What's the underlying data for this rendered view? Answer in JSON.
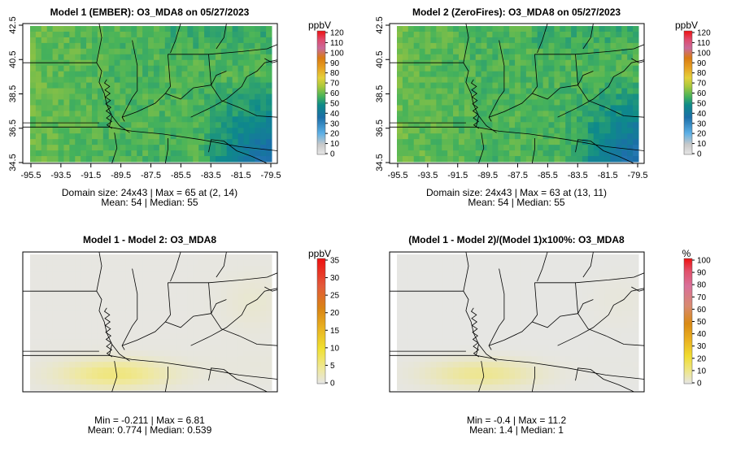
{
  "chart_data": [
    {
      "type": "heatmap",
      "title": "Model 1 (EMBER): O3_MDA8 on 05/27/2023",
      "x_ticks": [
        "-95.5",
        "-93.5",
        "-91.5",
        "-89.5",
        "-87.5",
        "-85.5",
        "-83.5",
        "-81.5",
        "-79.5"
      ],
      "y_ticks": [
        "34.5",
        "36.5",
        "38.5",
        "40.5",
        "42.5"
      ],
      "grid": {
        "cols": 24,
        "rows": 43
      },
      "stats_line1": "Domain size: 24x43 | Max = 65 at (2, 14)",
      "stats_line2": "Mean: 54 |  Median: 55",
      "colorbar": {
        "unit": "ppbV",
        "labels": [
          "120",
          "110",
          "100",
          "90",
          "80",
          "70",
          "60",
          "50",
          "40",
          "30",
          "20",
          "10",
          "0"
        ],
        "range": [
          0,
          120
        ]
      },
      "field": {
        "mean": 54,
        "max": 65
      }
    },
    {
      "type": "heatmap",
      "title": "Model 2 (ZeroFires): O3_MDA8 on 05/27/2023",
      "x_ticks": [
        "-95.5",
        "-93.5",
        "-91.5",
        "-89.5",
        "-87.5",
        "-85.5",
        "-83.5",
        "-81.5",
        "-79.5"
      ],
      "y_ticks": [
        "34.5",
        "36.5",
        "38.5",
        "40.5",
        "42.5"
      ],
      "grid": {
        "cols": 24,
        "rows": 43
      },
      "stats_line1": "Domain size: 24x43 | Max = 63 at (13, 11)",
      "stats_line2": "Mean: 54 |  Median: 55",
      "colorbar": {
        "unit": "ppbV",
        "labels": [
          "120",
          "110",
          "100",
          "90",
          "80",
          "70",
          "60",
          "50",
          "40",
          "30",
          "20",
          "10",
          "0"
        ],
        "range": [
          0,
          120
        ]
      },
      "field": {
        "mean": 54,
        "max": 63
      }
    },
    {
      "type": "heatmap",
      "title": "Model 1 - Model 2: O3_MDA8",
      "stats_line1": "Min = -0.211 | Max = 6.81",
      "stats_line2": "Mean: 0.774 |  Median: 0.539",
      "colorbar": {
        "unit": "ppbV",
        "labels": [
          "35",
          "30",
          "25",
          "20",
          "15",
          "10",
          "5",
          "0"
        ],
        "range": [
          0,
          35
        ]
      },
      "field": {
        "min": -0.211,
        "max": 6.81
      }
    },
    {
      "type": "heatmap",
      "title": "(Model 1 - Model 2)/(Model 1)x100%: O3_MDA8",
      "stats_line1": "Min = -0.4 | Max = 11.2",
      "stats_line2": "Mean: 1.4 |  Median: 1",
      "colorbar": {
        "unit": "%",
        "labels": [
          "100",
          "90",
          "80",
          "70",
          "60",
          "50",
          "40",
          "30",
          "20",
          "10",
          "0"
        ],
        "range": [
          0,
          100
        ]
      },
      "field": {
        "min": -0.4,
        "max": 11.2
      }
    }
  ]
}
